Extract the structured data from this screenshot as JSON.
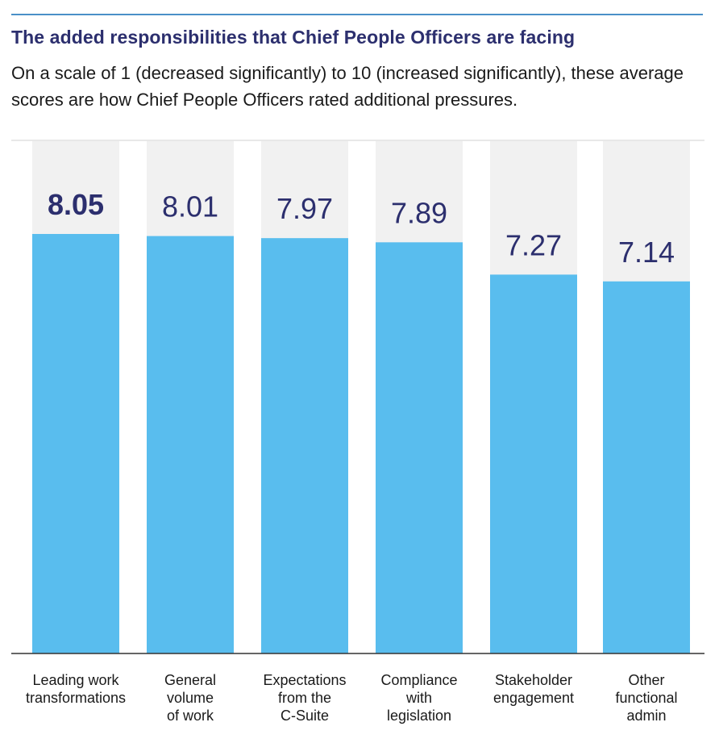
{
  "header": {
    "title": "The added responsibilities that Chief People Officers are facing",
    "subtitle": "On a scale of 1 (decreased significantly) to 10 (increased significantly), these average scores are how Chief People Officers rated additional pressures."
  },
  "colors": {
    "bar": "#59bdee",
    "bar_background": "#f1f1f1",
    "value_text": "#2c2f6e",
    "rule": "#4a90c8",
    "label_text": "#1a1a1a"
  },
  "chart_data": {
    "type": "bar",
    "categories": [
      [
        "Leading work",
        "transformations"
      ],
      [
        "General",
        "volume",
        "of work"
      ],
      [
        "Expectations",
        "from the",
        "C-Suite"
      ],
      [
        "Compliance",
        "with",
        "legislation"
      ],
      [
        "Stakeholder",
        "engagement"
      ],
      [
        "Other",
        "functional",
        "admin"
      ]
    ],
    "values": [
      8.05,
      8.01,
      7.97,
      7.89,
      7.27,
      7.14
    ],
    "value_labels": [
      "8.05",
      "8.01",
      "7.97",
      "7.89",
      "7.27",
      "7.14"
    ],
    "highlight_index": 0,
    "ylim": [
      0,
      10
    ],
    "grid": false,
    "legend": "none"
  }
}
